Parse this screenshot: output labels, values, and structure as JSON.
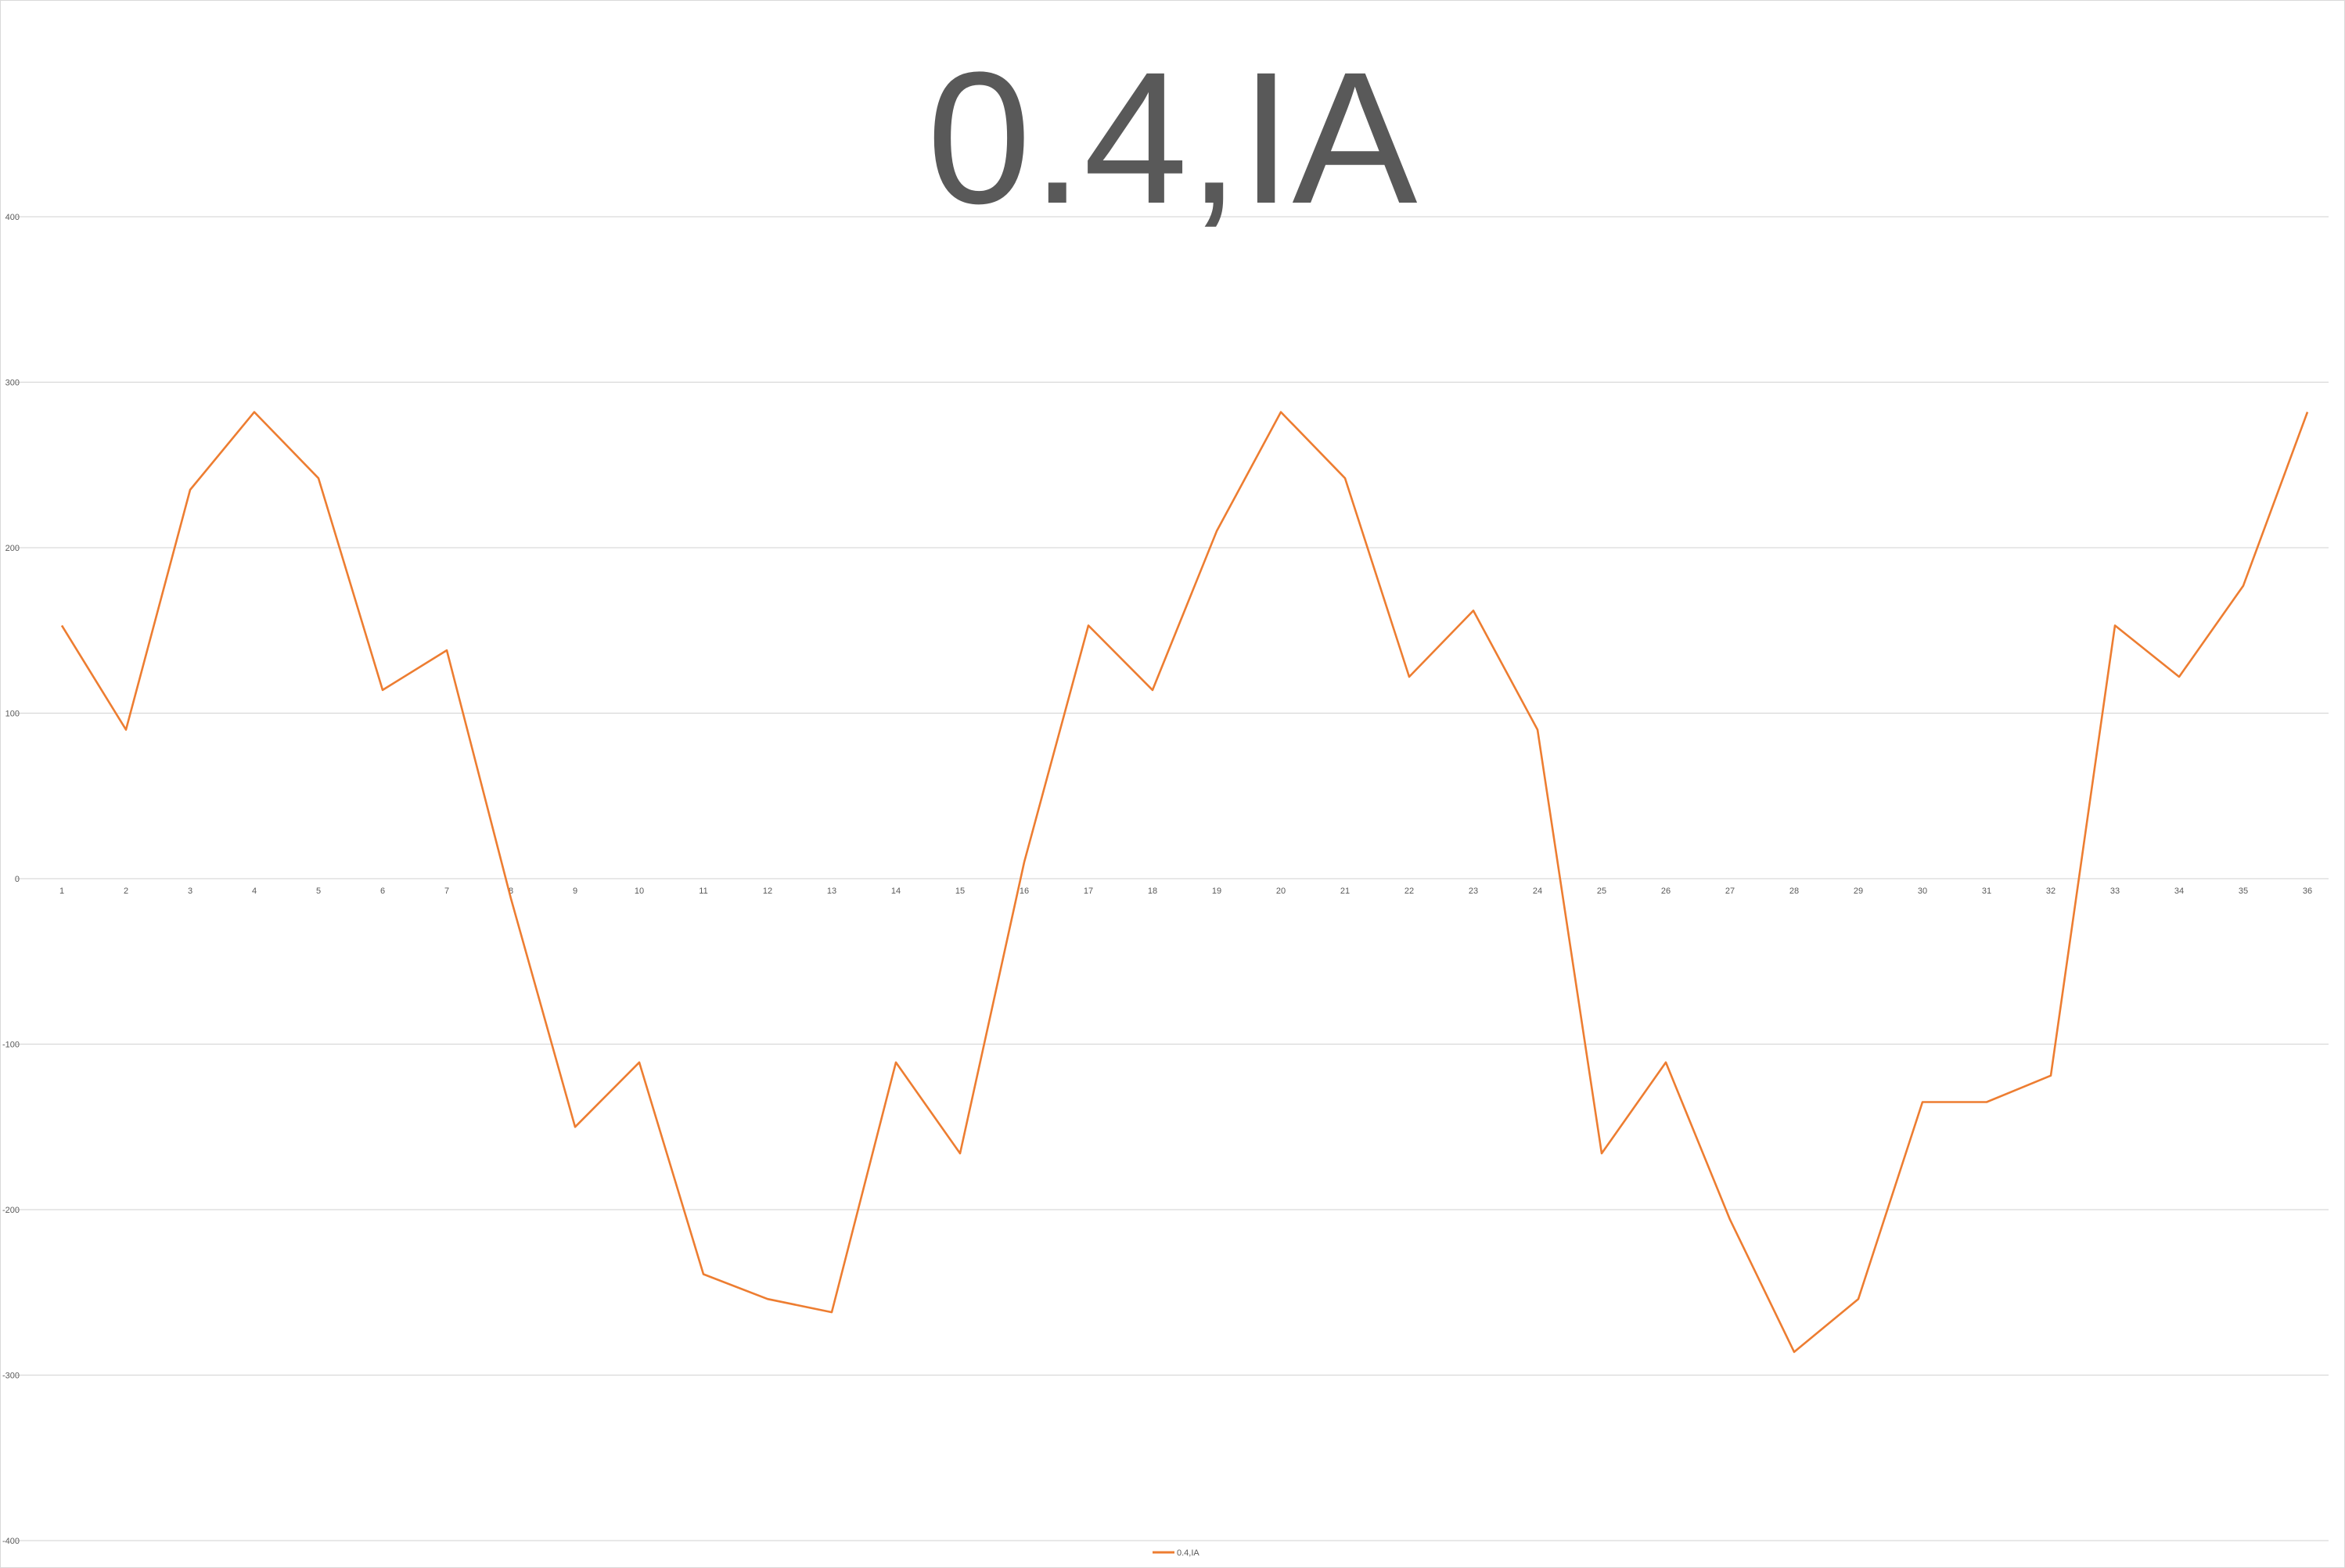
{
  "chart_data": {
    "type": "line",
    "title": "0.4,IA",
    "xlabel": "",
    "ylabel": "",
    "ylim": [
      -400,
      400
    ],
    "y_ticks": [
      400,
      300,
      200,
      100,
      0,
      -100,
      -200,
      -300,
      -400
    ],
    "grid": true,
    "legend_position": "bottom",
    "categories": [
      "1",
      "2",
      "3",
      "4",
      "5",
      "6",
      "7",
      "8",
      "9",
      "10",
      "11",
      "12",
      "13",
      "14",
      "15",
      "16",
      "17",
      "18",
      "19",
      "20",
      "21",
      "22",
      "23",
      "24",
      "25",
      "26",
      "27",
      "28",
      "29",
      "30",
      "31",
      "32",
      "33",
      "34",
      "35",
      "36"
    ],
    "series": [
      {
        "name": "0.4,IA",
        "color": "#ed7d31",
        "values": [
          153,
          90,
          235,
          282,
          242,
          114,
          138,
          -12,
          -150,
          -111,
          -239,
          -254,
          -262,
          -111,
          -166,
          10,
          153,
          114,
          210,
          282,
          242,
          122,
          162,
          90,
          -166,
          -111,
          -206,
          -286,
          -254,
          -135,
          -135,
          -119,
          153,
          122,
          177,
          282
        ]
      }
    ]
  }
}
